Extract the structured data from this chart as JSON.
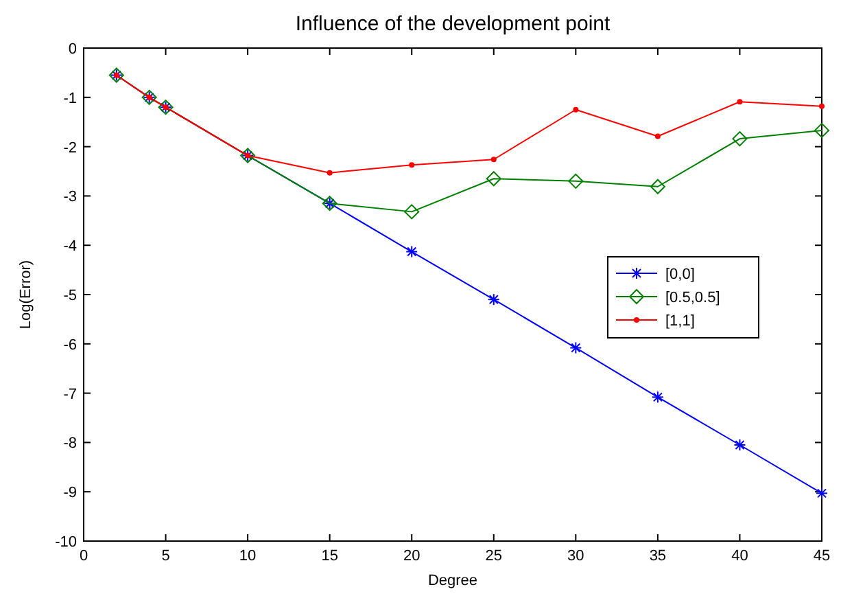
{
  "chart_data": {
    "type": "line",
    "title": "Influence of the development point",
    "xlabel": "Degree",
    "ylabel": "Log(Error)",
    "x": [
      2,
      4,
      5,
      10,
      15,
      20,
      25,
      30,
      35,
      40,
      45
    ],
    "series": [
      {
        "name": "[0,0]",
        "color": "#0000ff",
        "marker": "cross",
        "values": [
          -0.55,
          -1.0,
          -1.2,
          -2.18,
          -3.15,
          -4.13,
          -5.1,
          -6.08,
          -7.08,
          -8.05,
          -9.03
        ]
      },
      {
        "name": "[0.5,0.5]",
        "color": "#008000",
        "marker": "diamond",
        "values": [
          -0.55,
          -1.0,
          -1.2,
          -2.18,
          -3.15,
          -3.32,
          -2.65,
          -2.7,
          -2.81,
          -1.84,
          -1.67
        ]
      },
      {
        "name": "[1,1]",
        "color": "#ff0000",
        "marker": "circle",
        "values": [
          -0.55,
          -1.0,
          -1.2,
          -2.18,
          -2.53,
          -2.37,
          -2.26,
          -1.25,
          -1.79,
          -1.09,
          -1.18
        ]
      }
    ],
    "xlim": [
      0,
      45
    ],
    "xticks": [
      0,
      5,
      10,
      15,
      20,
      25,
      30,
      35,
      40,
      45
    ],
    "ylim": [
      -10,
      0
    ],
    "yticks": [
      -10,
      -9,
      -8,
      -7,
      -6,
      -5,
      -4,
      -3,
      -2,
      -1,
      0
    ],
    "grid": false,
    "legend": "right",
    "line_style": "solid"
  }
}
